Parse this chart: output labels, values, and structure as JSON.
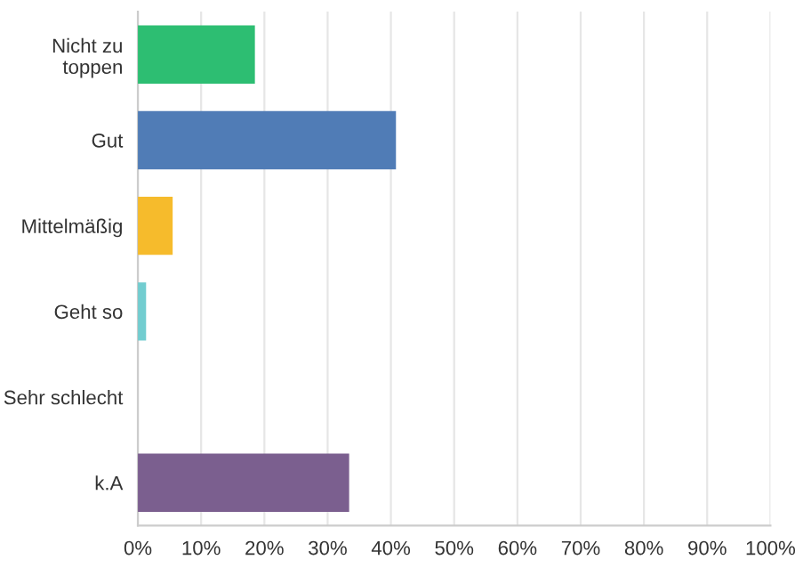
{
  "chart_data": {
    "type": "bar",
    "orientation": "horizontal",
    "categories": [
      "Nicht zu\ntoppen",
      "Gut",
      "Mittelmäßig",
      "Geht so",
      "Sehr schlecht",
      "k.A"
    ],
    "values": [
      18.5,
      40.8,
      5.5,
      1.3,
      0,
      33.4
    ],
    "colors": [
      "#2dbe72",
      "#507cb6",
      "#f6bb2c",
      "#72cdd0",
      null,
      "#7b5f8f"
    ],
    "xlim": [
      0,
      100
    ],
    "xticks": [
      {
        "value": 0,
        "label": "0%"
      },
      {
        "value": 10,
        "label": "10%"
      },
      {
        "value": 20,
        "label": "20%"
      },
      {
        "value": 30,
        "label": "30%"
      },
      {
        "value": 40,
        "label": "40%"
      },
      {
        "value": 50,
        "label": "50%"
      },
      {
        "value": 60,
        "label": "60%"
      },
      {
        "value": 70,
        "label": "70%"
      },
      {
        "value": 80,
        "label": "80%"
      },
      {
        "value": 90,
        "label": "90%"
      },
      {
        "value": 100,
        "label": "100%"
      }
    ],
    "grid": "x",
    "legend": false
  }
}
